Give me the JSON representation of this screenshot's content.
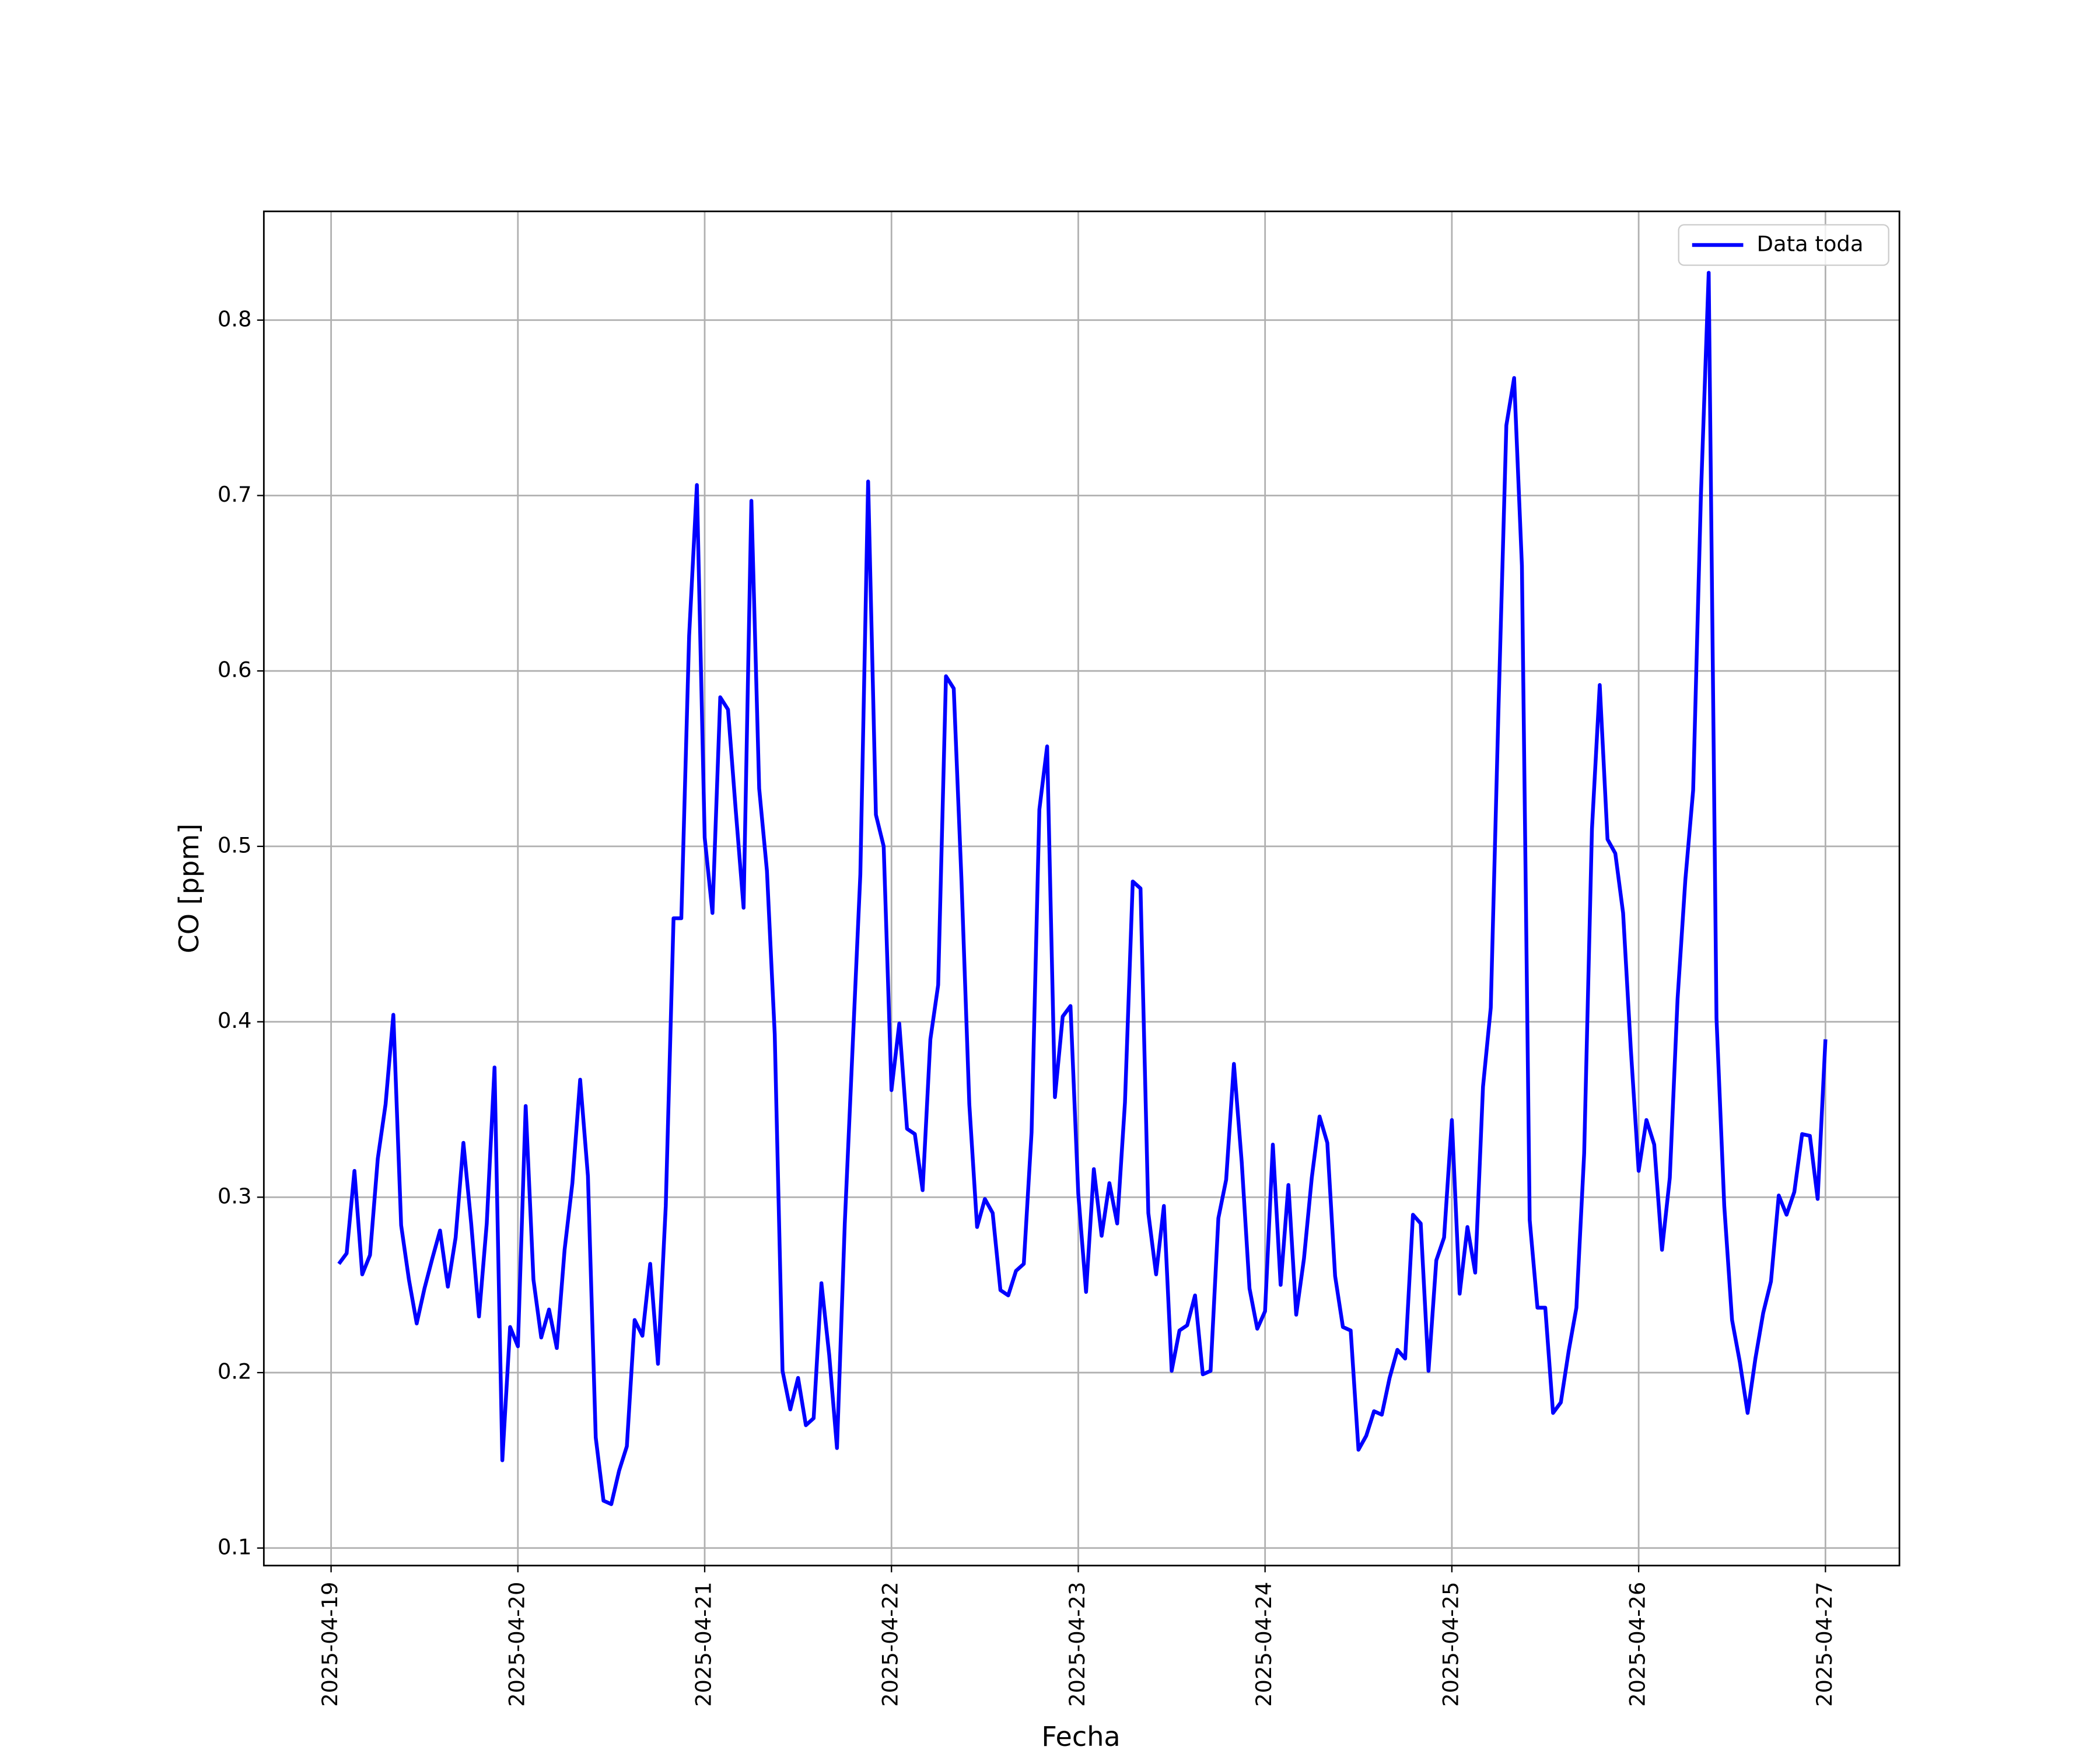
{
  "chart_data": {
    "type": "line",
    "xlabel": "Fecha",
    "ylabel": "CO [ppm]",
    "x": [
      0.0417,
      0.0833,
      0.125,
      0.1667,
      0.2083,
      0.25,
      0.2917,
      0.3333,
      0.375,
      0.4167,
      0.4583,
      0.5,
      0.5417,
      0.5833,
      0.625,
      0.6667,
      0.7083,
      0.75,
      0.7917,
      0.8333,
      0.875,
      0.9167,
      0.9583,
      1,
      1.0417,
      1.0833,
      1.125,
      1.1667,
      1.2083,
      1.25,
      1.2917,
      1.3333,
      1.375,
      1.4167,
      1.4583,
      1.5,
      1.5417,
      1.5833,
      1.625,
      1.6667,
      1.7083,
      1.75,
      1.7917,
      1.8333,
      1.875,
      1.9167,
      1.9583,
      2,
      2.0417,
      2.0833,
      2.125,
      2.1667,
      2.2083,
      2.25,
      2.2917,
      2.3333,
      2.375,
      2.4167,
      2.4583,
      2.5,
      2.5417,
      2.5833,
      2.625,
      2.6667,
      2.7083,
      2.75,
      2.7917,
      2.8333,
      2.875,
      2.9167,
      2.9583,
      3,
      3.0417,
      3.0833,
      3.125,
      3.1667,
      3.2083,
      3.25,
      3.2917,
      3.3333,
      3.375,
      3.4167,
      3.4583,
      3.5,
      3.5417,
      3.5833,
      3.625,
      3.6667,
      3.7083,
      3.75,
      3.7917,
      3.8333,
      3.875,
      3.9167,
      3.9583,
      4,
      4.0417,
      4.0833,
      4.125,
      4.1667,
      4.2083,
      4.25,
      4.2917,
      4.3333,
      4.375,
      4.4167,
      4.4583,
      4.5,
      4.5417,
      4.5833,
      4.625,
      4.6667,
      4.7083,
      4.75,
      4.7917,
      4.8333,
      4.875,
      4.9167,
      4.9583,
      5,
      5.0417,
      5.0833,
      5.125,
      5.1667,
      5.2083,
      5.25,
      5.2917,
      5.3333,
      5.375,
      5.4167,
      5.4583,
      5.5,
      5.5417,
      5.5833,
      5.625,
      5.6667,
      5.7083,
      5.75,
      5.7917,
      5.8333,
      5.875,
      5.9167,
      5.9583,
      6,
      6.0417,
      6.0833,
      6.125,
      6.1667,
      6.2083,
      6.25,
      6.2917,
      6.3333,
      6.375,
      6.4167,
      6.4583,
      6.5,
      6.5417,
      6.5833,
      6.625,
      6.6667,
      6.7083,
      6.75,
      6.7917,
      6.8333,
      6.875,
      6.9167,
      6.9583,
      7,
      7.0417,
      7.0833,
      7.125,
      7.1667,
      7.2083,
      7.25,
      7.2917,
      7.3333,
      7.375,
      7.4167,
      7.4583,
      7.5,
      7.5417,
      7.5833,
      7.625,
      7.6667,
      7.7083,
      7.75,
      7.7917,
      7.8333,
      7.875,
      7.9167,
      7.9583,
      8
    ],
    "series": [
      {
        "name": "Data toda",
        "color": "#0000ff",
        "values": [
          0.262,
          0.268,
          0.315,
          0.256,
          0.267,
          0.322,
          0.353,
          0.404,
          0.284,
          0.253,
          0.228,
          0.248,
          0.265,
          0.281,
          0.249,
          0.277,
          0.331,
          0.285,
          0.232,
          0.285,
          0.374,
          0.15,
          0.226,
          0.215,
          0.352,
          0.253,
          0.22,
          0.236,
          0.214,
          0.27,
          0.308,
          0.367,
          0.312,
          0.163,
          0.127,
          0.125,
          0.144,
          0.158,
          0.23,
          0.221,
          0.262,
          0.205,
          0.295,
          0.459,
          0.459,
          0.62,
          0.706,
          0.505,
          0.462,
          0.585,
          0.578,
          0.52,
          0.465,
          0.697,
          0.533,
          0.486,
          0.393,
          0.201,
          0.179,
          0.197,
          0.17,
          0.174,
          0.251,
          0.21,
          0.157,
          0.285,
          0.385,
          0.484,
          0.708,
          0.518,
          0.5,
          0.361,
          0.399,
          0.339,
          0.336,
          0.304,
          0.39,
          0.421,
          0.597,
          0.59,
          0.48,
          0.353,
          0.283,
          0.299,
          0.291,
          0.247,
          0.244,
          0.258,
          0.262,
          0.337,
          0.521,
          0.557,
          0.357,
          0.403,
          0.409,
          0.302,
          0.246,
          0.316,
          0.278,
          0.308,
          0.285,
          0.354,
          0.48,
          0.476,
          0.291,
          0.256,
          0.295,
          0.201,
          0.224,
          0.227,
          0.244,
          0.199,
          0.201,
          0.288,
          0.31,
          0.376,
          0.32,
          0.248,
          0.225,
          0.235,
          0.33,
          0.25,
          0.307,
          0.233,
          0.265,
          0.311,
          0.346,
          0.331,
          0.255,
          0.226,
          0.224,
          0.156,
          0.164,
          0.178,
          0.176,
          0.197,
          0.213,
          0.208,
          0.29,
          0.285,
          0.201,
          0.264,
          0.277,
          0.344,
          0.245,
          0.283,
          0.257,
          0.363,
          0.408,
          0.58,
          0.74,
          0.767,
          0.66,
          0.287,
          0.237,
          0.237,
          0.177,
          0.183,
          0.212,
          0.237,
          0.325,
          0.51,
          0.592,
          0.504,
          0.496,
          0.462,
          0.384,
          0.315,
          0.344,
          0.33,
          0.27,
          0.311,
          0.413,
          0.481,
          0.532,
          0.7,
          0.827,
          0.402,
          0.295,
          0.23,
          0.206,
          0.177,
          0.208,
          0.234,
          0.252,
          0.301,
          0.29,
          0.303,
          0.336,
          0.335,
          0.299,
          0.39
        ]
      }
    ],
    "xlim": [
      -0.36,
      8.396
    ],
    "xticks": [
      {
        "value": 0,
        "label": "2025-04-19"
      },
      {
        "value": 1,
        "label": "2025-04-20"
      },
      {
        "value": 2,
        "label": "2025-04-21"
      },
      {
        "value": 3,
        "label": "2025-04-22"
      },
      {
        "value": 4,
        "label": "2025-04-23"
      },
      {
        "value": 5,
        "label": "2025-04-24"
      },
      {
        "value": 6,
        "label": "2025-04-25"
      },
      {
        "value": 7,
        "label": "2025-04-26"
      },
      {
        "value": 8,
        "label": "2025-04-27"
      }
    ],
    "ylim": [
      0.09,
      0.862
    ],
    "yticks": [
      0.1,
      0.2,
      0.3,
      0.4,
      0.5,
      0.6,
      0.7,
      0.8
    ],
    "grid": true,
    "legend": "upper right"
  }
}
